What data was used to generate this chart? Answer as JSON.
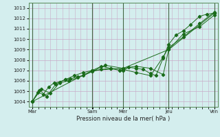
{
  "title": "",
  "xlabel": "Pression niveau de la mer( hPa )",
  "ylabel": "",
  "ylim": [
    1003.5,
    1013.5
  ],
  "yticks": [
    1004,
    1005,
    1006,
    1007,
    1008,
    1009,
    1010,
    1011,
    1012,
    1013
  ],
  "bg_color": "#d4eeee",
  "grid_color": "#c8aac8",
  "line_color": "#1a6b1a",
  "day_labels": [
    "Mar",
    "Sam",
    "Mer",
    "Jeu",
    "Ven"
  ],
  "day_positions": [
    0.0,
    0.33,
    0.5,
    0.75,
    1.0
  ],
  "vline_positions": [
    0.0,
    0.33,
    0.5,
    0.75,
    1.0
  ],
  "series": [
    {
      "x": [
        0.0,
        0.03,
        0.06,
        0.09,
        0.12,
        0.15,
        0.18,
        0.21,
        0.25,
        0.28,
        0.33,
        0.38,
        0.43,
        0.48,
        0.5,
        0.53,
        0.57,
        0.61,
        0.65,
        0.68,
        0.72,
        0.75,
        0.79,
        0.83,
        0.87,
        0.92,
        0.96,
        1.0
      ],
      "y": [
        1004.0,
        1004.9,
        1004.7,
        1005.4,
        1005.8,
        1005.9,
        1006.1,
        1006.2,
        1006.4,
        1006.5,
        1006.9,
        1007.1,
        1007.2,
        1007.0,
        1007.0,
        1007.3,
        1007.2,
        1007.1,
        1006.7,
        1006.5,
        1008.2,
        1009.5,
        1010.4,
        1010.8,
        1011.4,
        1012.2,
        1012.4,
        1012.5
      ]
    },
    {
      "x": [
        0.0,
        0.04,
        0.08,
        0.13,
        0.18,
        0.23,
        0.28,
        0.33,
        0.38,
        0.43,
        0.5,
        0.57,
        0.65,
        0.72,
        0.75,
        0.83,
        0.92,
        1.0
      ],
      "y": [
        1004.0,
        1005.1,
        1004.5,
        1005.7,
        1006.1,
        1006.5,
        1006.8,
        1007.0,
        1007.4,
        1007.2,
        1007.1,
        1006.8,
        1006.5,
        1008.3,
        1009.2,
        1010.2,
        1011.5,
        1012.6
      ]
    },
    {
      "x": [
        0.0,
        0.05,
        0.1,
        0.15,
        0.2,
        0.25,
        0.33,
        0.4,
        0.5,
        0.57,
        0.65,
        0.72,
        0.75,
        0.83,
        0.92,
        1.0
      ],
      "y": [
        1004.0,
        1005.2,
        1004.8,
        1005.8,
        1006.0,
        1006.3,
        1006.9,
        1007.5,
        1007.2,
        1007.4,
        1007.2,
        1006.6,
        1009.0,
        1010.5,
        1011.2,
        1012.3
      ]
    },
    {
      "x": [
        0.0,
        0.33,
        0.5,
        0.75,
        1.0
      ],
      "y": [
        1004.0,
        1007.0,
        1007.2,
        1009.0,
        1012.5
      ]
    }
  ],
  "vline_color": "#446644",
  "vline_lw": 0.8
}
